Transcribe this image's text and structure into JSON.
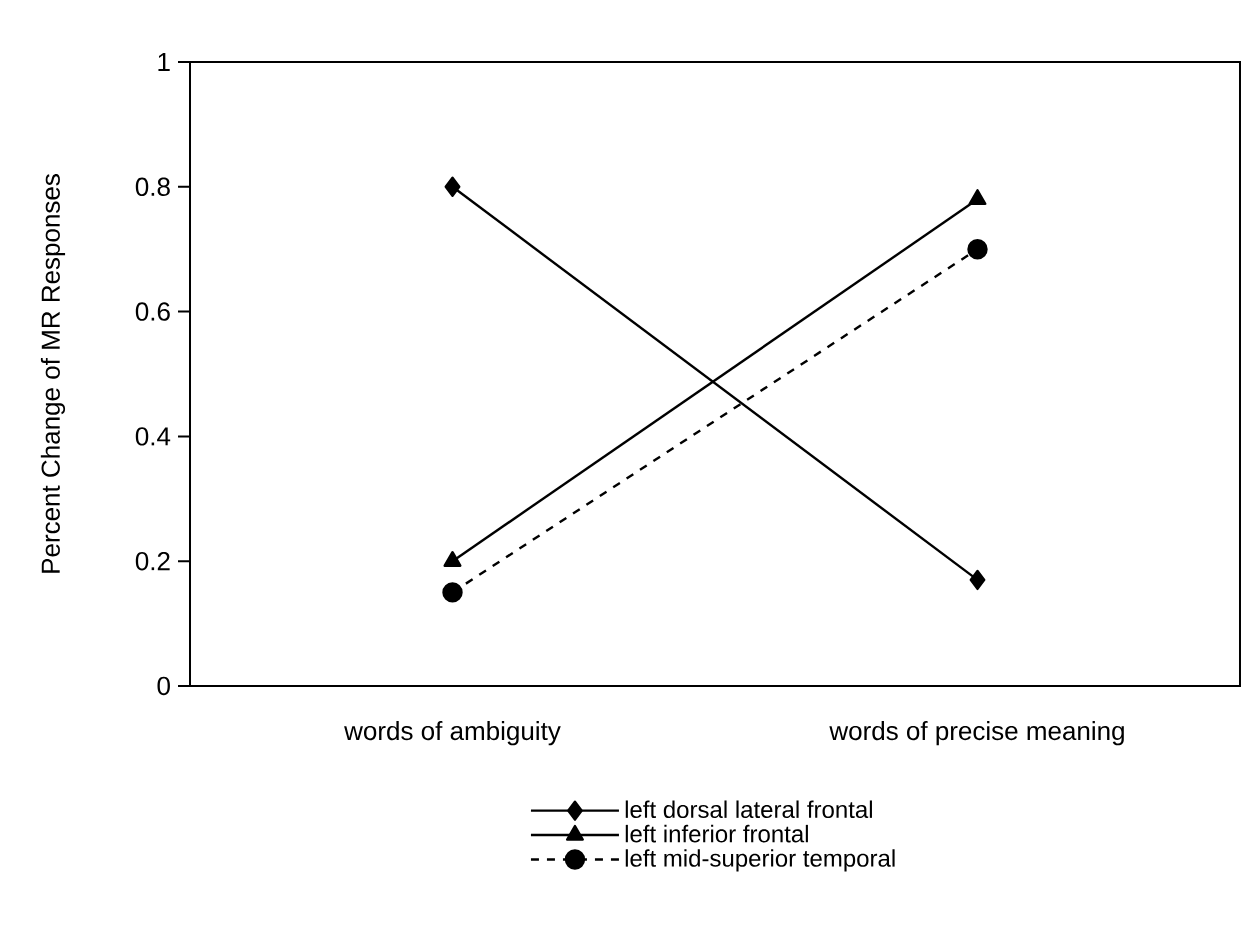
{
  "chart_data": {
    "type": "line",
    "ylabel": "Percent Change of MR Responses",
    "categories": [
      "words of ambiguity",
      "words of precise meaning"
    ],
    "series": [
      {
        "name": "left dorsal lateral frontal",
        "color": "#000000",
        "values": [
          0.8,
          0.17
        ],
        "marker": "diamond",
        "line_style": "solid"
      },
      {
        "name": "left inferior frontal",
        "color": "#000000",
        "values": [
          0.2,
          0.78
        ],
        "marker": "triangle",
        "line_style": "solid"
      },
      {
        "name": "left mid-superior temporal",
        "color": "#000000",
        "values": [
          0.15,
          0.7
        ],
        "marker": "circle",
        "line_style": "dashed"
      }
    ],
    "ylim": [
      0,
      1
    ],
    "yticks": [
      0,
      0.2,
      0.4,
      0.6,
      0.8,
      1
    ],
    "grid": false,
    "legend": "bottom"
  }
}
